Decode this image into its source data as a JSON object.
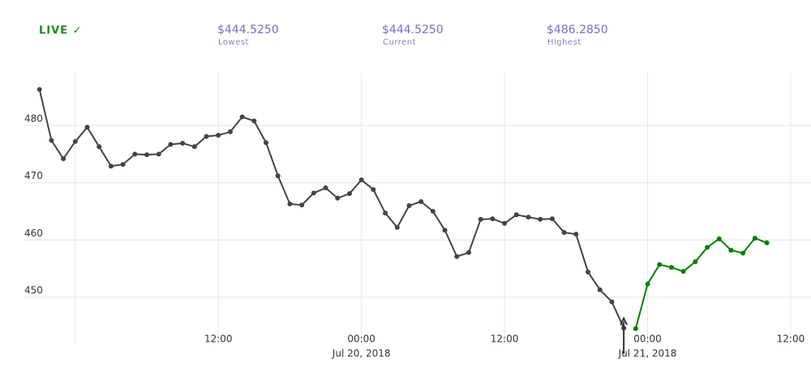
{
  "header": {
    "live": "LIVE ✓",
    "stats": [
      {
        "value": "$444.5250",
        "label": "Lowest"
      },
      {
        "value": "$444.5250",
        "label": "Current"
      },
      {
        "value": "$486.2850",
        "label": "Highest"
      }
    ]
  },
  "chart_data": {
    "type": "line",
    "series": [
      {
        "color": "#444444",
        "x": [
          "2018-07-18 21:00",
          "2018-07-18 22:00",
          "2018-07-18 23:00",
          "2018-07-19 00:00",
          "2018-07-19 01:00",
          "2018-07-19 02:00",
          "2018-07-19 03:00",
          "2018-07-19 04:00",
          "2018-07-19 05:00",
          "2018-07-19 06:00",
          "2018-07-19 07:00",
          "2018-07-19 08:00",
          "2018-07-19 09:00",
          "2018-07-19 10:00",
          "2018-07-19 11:00",
          "2018-07-19 12:00",
          "2018-07-19 13:00",
          "2018-07-19 14:00",
          "2018-07-19 15:00",
          "2018-07-19 16:00",
          "2018-07-19 17:00",
          "2018-07-19 18:00",
          "2018-07-19 19:00",
          "2018-07-19 20:00",
          "2018-07-19 21:00",
          "2018-07-19 22:00",
          "2018-07-19 23:00",
          "2018-07-20 00:00",
          "2018-07-20 01:00",
          "2018-07-20 02:00",
          "2018-07-20 03:00",
          "2018-07-20 04:00",
          "2018-07-20 05:00",
          "2018-07-20 06:00",
          "2018-07-20 07:00",
          "2018-07-20 08:00",
          "2018-07-20 09:00",
          "2018-07-20 10:00",
          "2018-07-20 11:00",
          "2018-07-20 12:00",
          "2018-07-20 13:00",
          "2018-07-20 14:00",
          "2018-07-20 15:00",
          "2018-07-20 16:00",
          "2018-07-20 17:00",
          "2018-07-20 18:00",
          "2018-07-20 19:00",
          "2018-07-20 20:00",
          "2018-07-20 21:00",
          "2018-07-20 22:00"
        ],
        "values": [
          486.3,
          477.4,
          474.2,
          477.2,
          479.7,
          476.3,
          472.9,
          473.2,
          475.0,
          474.9,
          475.0,
          476.7,
          476.9,
          476.3,
          478.1,
          478.3,
          478.9,
          481.5,
          480.8,
          477.0,
          471.2,
          466.3,
          466.1,
          468.2,
          469.1,
          467.3,
          468.1,
          470.5,
          468.8,
          464.7,
          462.2,
          466.0,
          466.7,
          465.0,
          461.7,
          457.1,
          457.8,
          463.6,
          463.7,
          462.9,
          464.4,
          464.0,
          463.6,
          463.7,
          461.3,
          461.0,
          454.4,
          451.3,
          449.2,
          444.6
        ]
      },
      {
        "color": "#008000",
        "x": [
          "2018-07-20 23:00",
          "2018-07-21 00:00",
          "2018-07-21 01:00",
          "2018-07-21 02:00",
          "2018-07-21 03:00",
          "2018-07-21 04:00",
          "2018-07-21 05:00",
          "2018-07-21 06:00",
          "2018-07-21 07:00",
          "2018-07-21 08:00",
          "2018-07-21 09:00",
          "2018-07-21 10:00"
        ],
        "values": [
          444.5,
          452.3,
          455.7,
          455.2,
          454.5,
          456.2,
          458.7,
          460.2,
          458.2,
          457.7,
          460.3,
          459.5
        ]
      }
    ],
    "xlim": [
      "2018-07-18 20:00",
      "2018-07-21 13:30"
    ],
    "xticks": [
      {
        "value": "2018-07-19 12:00",
        "label": "12:00"
      },
      {
        "value": "2018-07-20 00:00",
        "label": "00:00"
      },
      {
        "value": "2018-07-20 12:00",
        "label": "12:00"
      },
      {
        "value": "2018-07-21 00:00",
        "label": "00:00"
      },
      {
        "value": "2018-07-21 12:00",
        "label": "12:00"
      }
    ],
    "xtick_dates": [
      {
        "value": "2018-07-20 00:00",
        "label": "Jul 20, 2018"
      },
      {
        "value": "2018-07-21 00:00",
        "label": "Jul 21, 2018"
      }
    ],
    "ylim": [
      441.8,
      489.2
    ],
    "yticks": [
      450,
      460,
      470,
      480
    ],
    "grid": true
  }
}
